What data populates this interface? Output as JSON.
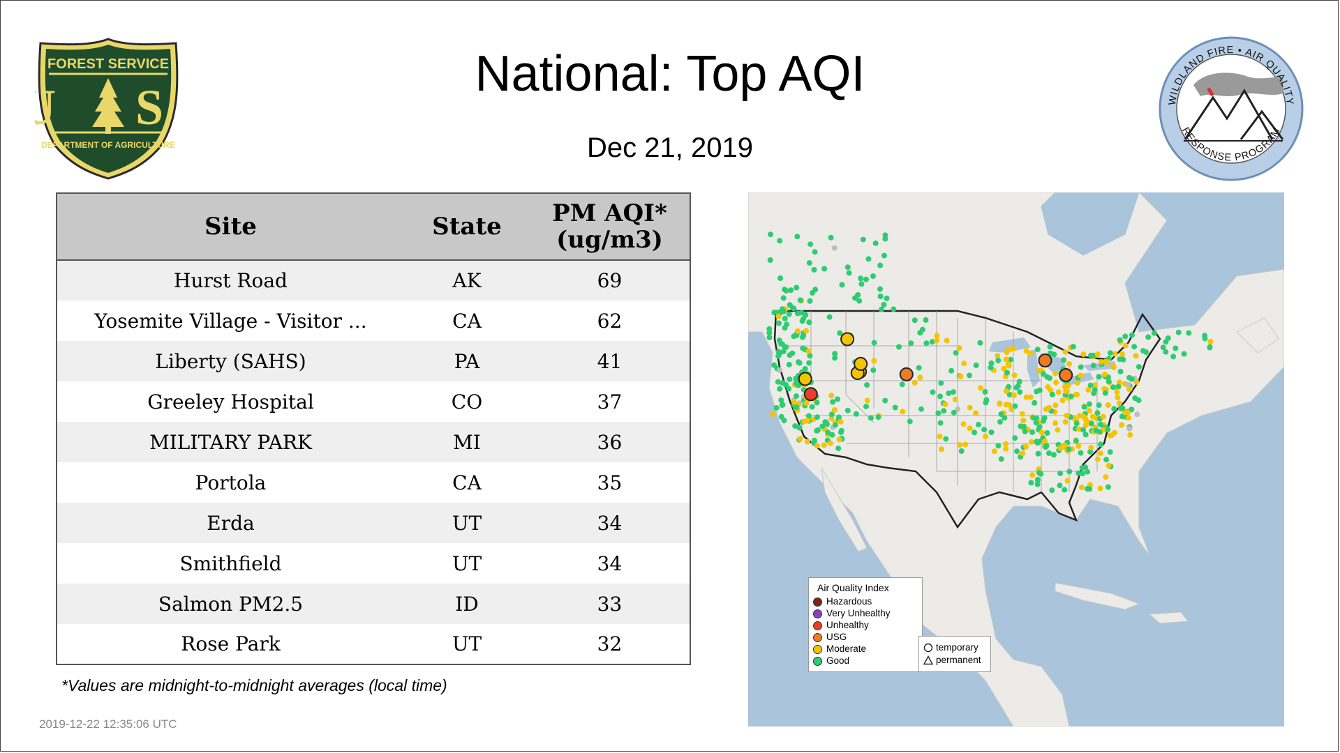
{
  "header": {
    "title": "National: Top AQI",
    "date": "Dec 21, 2019"
  },
  "logos": {
    "usfs": {
      "top_text": "FOREST SERVICE",
      "letters": "U S",
      "bottom_text": "DEPARTMENT OF AGRICULTURE"
    },
    "wildland": {
      "top_text": "WILDLAND FIRE • AIR QUALITY",
      "bottom_text": "RESPONSE PROGRAM"
    }
  },
  "table": {
    "headers": {
      "site": "Site",
      "state": "State",
      "aqi_line1": "PM AQI*",
      "aqi_line2": "(ug/m3)"
    },
    "rows": [
      {
        "site": "Hurst Road",
        "state": "AK",
        "aqi": "69"
      },
      {
        "site": "Yosemite Village - Visitor ...",
        "state": "CA",
        "aqi": "62"
      },
      {
        "site": "Liberty (SAHS)",
        "state": "PA",
        "aqi": "41"
      },
      {
        "site": "Greeley Hospital",
        "state": "CO",
        "aqi": "37"
      },
      {
        "site": "MILITARY PARK",
        "state": "MI",
        "aqi": "36"
      },
      {
        "site": "Portola",
        "state": "CA",
        "aqi": "35"
      },
      {
        "site": "Erda",
        "state": "UT",
        "aqi": "34"
      },
      {
        "site": "Smithfield",
        "state": "UT",
        "aqi": "34"
      },
      {
        "site": "Salmon PM2.5",
        "state": "ID",
        "aqi": "33"
      },
      {
        "site": "Rose Park",
        "state": "UT",
        "aqi": "32"
      }
    ]
  },
  "footnote": "*Values are midnight-to-midnight averages (local time)",
  "timestamp": "2019-12-22 12:35:06 UTC",
  "map": {
    "legend": {
      "title": "Air Quality Index",
      "items": [
        {
          "label": "Hazardous",
          "color": "#7e2418"
        },
        {
          "label": "Very Unhealthy",
          "color": "#8f3fc0"
        },
        {
          "label": "Unhealthy",
          "color": "#e8402c"
        },
        {
          "label": "USG",
          "color": "#ee7a22"
        },
        {
          "label": "Moderate",
          "color": "#f5c400"
        },
        {
          "label": "Good",
          "color": "#2ecc71"
        }
      ]
    },
    "shape_legend": {
      "temporary": "temporary",
      "permanent": "permanent"
    },
    "colors": {
      "water": "#a9c4db",
      "land": "#ecebe8",
      "good": "#2ecc71",
      "moderate": "#f5c400",
      "usg": "#ee7a22",
      "unhealthy": "#e8402c",
      "no_data": "#bdbdbd"
    },
    "featured_sites": [
      {
        "name": "Rose Park",
        "aqi": 32,
        "lat": 40.78,
        "lon": -111.93
      },
      {
        "name": "Erda",
        "aqi": 34,
        "lat": 40.6,
        "lon": -112.3
      },
      {
        "name": "Smithfield",
        "aqi": 34,
        "lat": 41.84,
        "lon": -111.83
      },
      {
        "name": "Salmon PM2.5",
        "aqi": 33,
        "lat": 45.18,
        "lon": -113.9
      },
      {
        "name": "Portola",
        "aqi": 35,
        "lat": 39.8,
        "lon": -120.47
      },
      {
        "name": "Yosemite Village - Visitor ...",
        "aqi": 62,
        "lat": 37.75,
        "lon": -119.59
      },
      {
        "name": "Greeley Hospital",
        "aqi": 37,
        "lat": 40.42,
        "lon": -104.7
      },
      {
        "name": "MILITARY PARK",
        "aqi": 36,
        "lat": 42.3,
        "lon": -83.1
      },
      {
        "name": "Liberty (SAHS)",
        "aqi": 41,
        "lat": 40.32,
        "lon": -79.87
      }
    ]
  }
}
